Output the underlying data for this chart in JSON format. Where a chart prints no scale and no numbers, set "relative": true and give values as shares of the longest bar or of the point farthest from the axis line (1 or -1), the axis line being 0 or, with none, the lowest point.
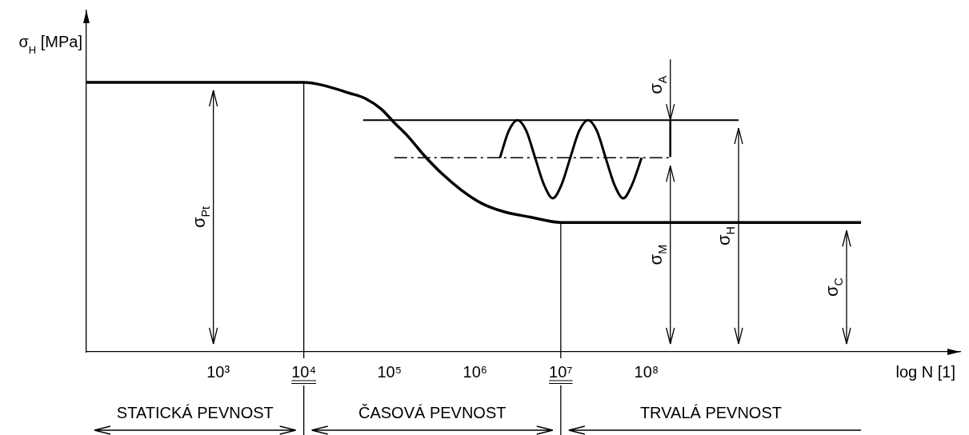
{
  "chart_data": {
    "type": "line",
    "relative": true,
    "log": "x",
    "ylabel": "σ$_{H}$ [MPa]",
    "xlabel": "log N [1]",
    "xlim": [
      29,
      460000000000
    ],
    "xticks": [
      {
        "value": 1000,
        "label": "10³"
      },
      {
        "value": 10000,
        "label": "10⁴"
      },
      {
        "value": 100000,
        "label": "10⁵"
      },
      {
        "value": 1000000,
        "label": "10⁶"
      },
      {
        "value": 10000000,
        "label": "10⁷"
      },
      {
        "value": 100000000,
        "label": "10⁸"
      }
    ],
    "marker": "none",
    "series": [
      {
        "color": "#000000",
        "x": [
          29,
          10000,
          16400,
          34100,
          52500,
          80700,
          114000,
          164000,
          252000,
          414000,
          693000,
          1210000,
          2170000,
          4410000,
          10000000,
          32000000000
        ],
        "values": [
          1,
          1,
          0.99,
          0.96,
          0.94,
          0.9,
          0.85,
          0.8,
          0.73,
          0.66,
          0.6,
          0.55,
          0.52,
          0.5,
          0.48,
          0.48
        ]
      },
      {
        "color": "#000000",
        "x": [
          49200,
          1190000000
        ],
        "values": [
          0.86,
          0.86
        ]
      },
      {
        "color": "#000000",
        "line_style": "dashed",
        "x": [
          114000,
          190000000
        ],
        "values": [
          0.72,
          0.72
        ]
      },
      {
        "color": "#000000",
        "x": [
          1950000,
          2470000,
          3130000,
          3960000,
          5020000,
          6370000,
          8070000,
          10200000,
          12900000,
          16400000,
          20800000,
          26400000,
          33400000,
          42300000,
          53600000,
          67900000,
          87900000
        ],
        "values": [
          0.72,
          0.82,
          0.86,
          0.82,
          0.72,
          0.62,
          0.57,
          0.62,
          0.72,
          0.82,
          0.86,
          0.82,
          0.72,
          0.62,
          0.57,
          0.62,
          0.72
        ]
      }
    ],
    "ref_lines": [
      {
        "axis": "x",
        "value": 10000
      },
      {
        "axis": "x",
        "value": 10000000
      },
      {
        "axis": "x",
        "value": 880,
        "label": "σ$_{Pt}$"
      },
      {
        "axis": "x",
        "value": 190000000,
        "label": "σ$_{M}$"
      },
      {
        "axis": "x",
        "value": 190000000,
        "label": "σ$_{A}$"
      },
      {
        "axis": "x",
        "value": 1190000000,
        "label": "σ$_{H}$"
      },
      {
        "axis": "x",
        "value": 21700000000,
        "label": "σ$_{C}$"
      }
    ],
    "annotations": [
      "STATICKÁ PEVNOST",
      "ČASOVÁ PEVNOST",
      "TRVALÁ PEVNOST"
    ]
  }
}
